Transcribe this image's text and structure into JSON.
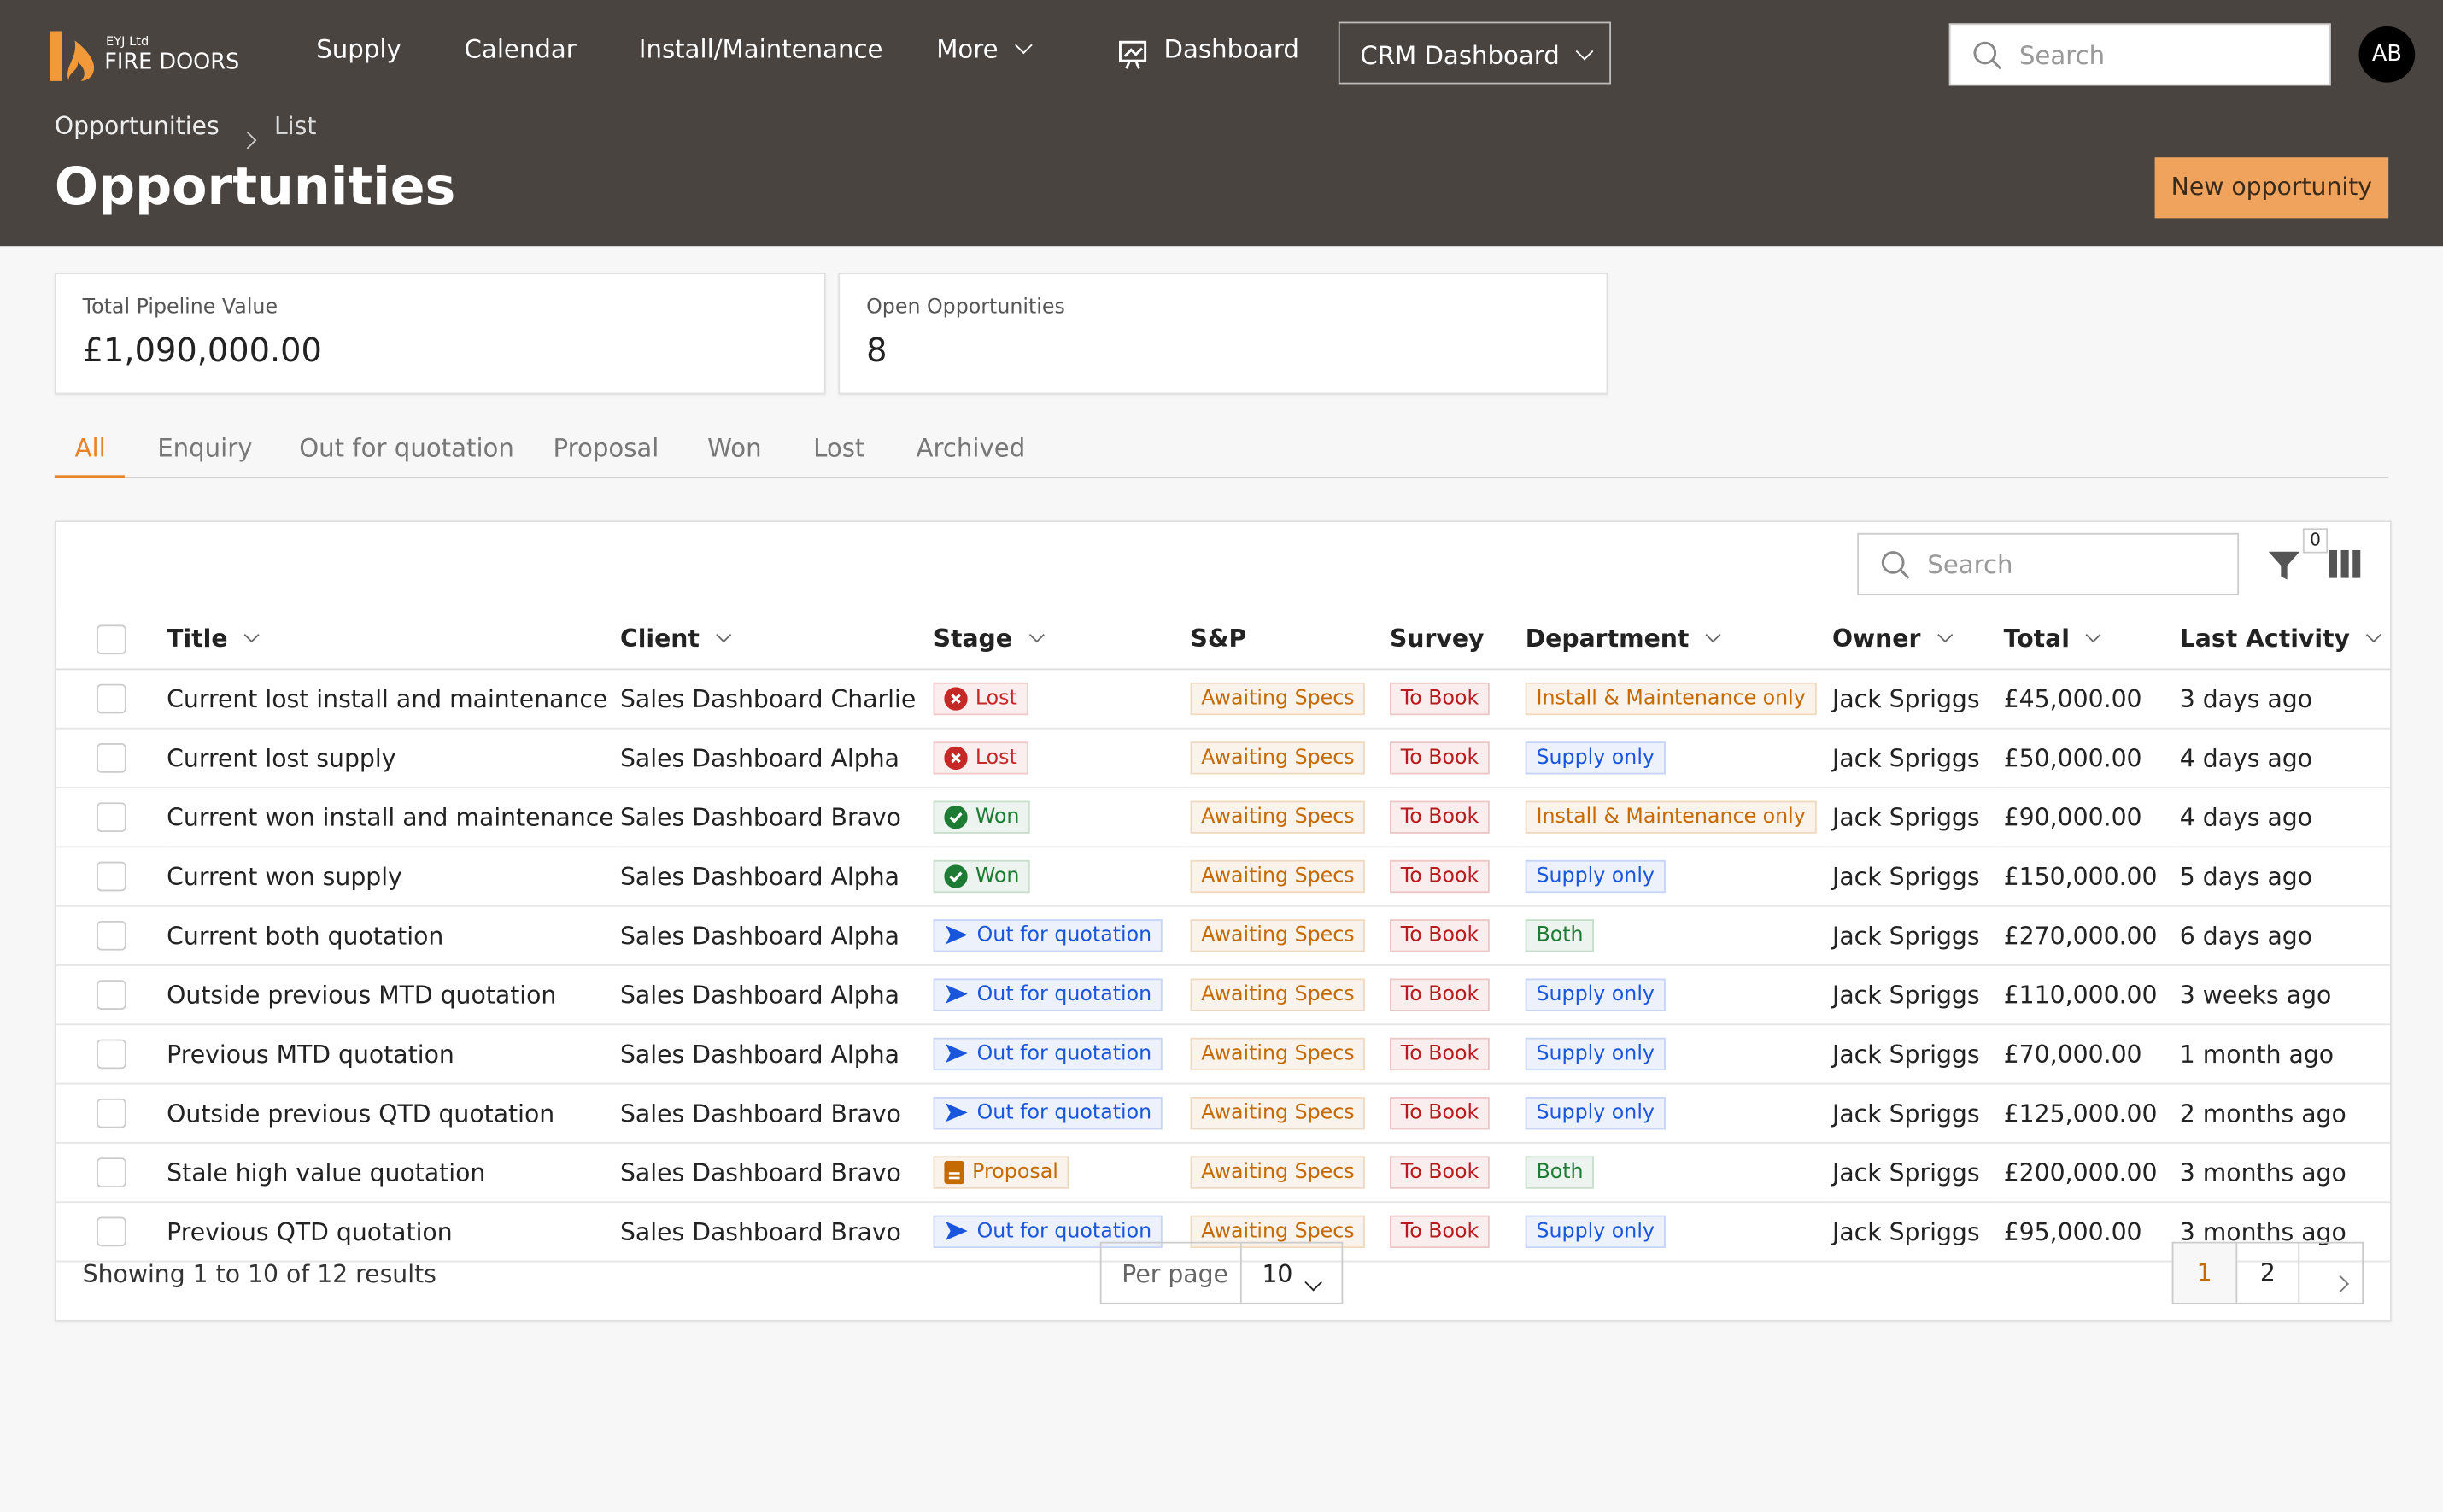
{
  "nav": {
    "logo_small": "EYJ Ltd",
    "logo": "FIRE DOORS",
    "items": [
      "Supply",
      "Calendar",
      "Install/Maintenance",
      "More",
      "Dashboard"
    ],
    "dropdown": "CRM Dashboard",
    "search_placeholder": "Search",
    "avatar": "AB"
  },
  "breadcrumb": [
    "Opportunities",
    "List"
  ],
  "header": {
    "title": "Opportunities",
    "button": "New opportunity"
  },
  "stats": [
    {
      "label": "Total Pipeline Value",
      "value": "£1,090,000.00"
    },
    {
      "label": "Open Opportunities",
      "value": "8"
    }
  ],
  "tabs": [
    "All",
    "Enquiry",
    "Out for quotation",
    "Proposal",
    "Won",
    "Lost",
    "Archived"
  ],
  "table": {
    "search_placeholder": "Search",
    "filter_count": 0,
    "columns": [
      "Title",
      "Client",
      "Stage",
      "S&P",
      "Survey",
      "Department",
      "Owner",
      "Total",
      "Last Activity"
    ],
    "rows": [
      [
        "Current lost install and maintenance",
        "Sales Dashboard Charlie",
        {
          "text": "Lost",
          "color": "#c62828",
          "icon": "x"
        },
        "Awaiting Specs",
        "To Book",
        {
          "text": "Install & Maintenance only",
          "color": "#c46a00"
        },
        "Jack Spriggs",
        "£45,000.00",
        "3 days ago"
      ],
      [
        "Current lost supply",
        "Sales Dashboard Alpha",
        {
          "text": "Lost",
          "color": "#c62828",
          "icon": "x"
        },
        "Awaiting Specs",
        "To Book",
        {
          "text": "Supply only",
          "color": "#1a56db"
        },
        "Jack Spriggs",
        "£50,000.00",
        "4 days ago"
      ],
      [
        "Current won install and maintenance",
        "Sales Dashboard Bravo",
        {
          "text": "Won",
          "color": "#1e7b34",
          "icon": "check"
        },
        "Awaiting Specs",
        "To Book",
        {
          "text": "Install & Maintenance only",
          "color": "#c46a00"
        },
        "Jack Spriggs",
        "£90,000.00",
        "4 days ago"
      ],
      [
        "Current won supply",
        "Sales Dashboard Alpha",
        {
          "text": "Won",
          "color": "#1e7b34",
          "icon": "check"
        },
        "Awaiting Specs",
        "To Book",
        {
          "text": "Supply only",
          "color": "#1a56db"
        },
        "Jack Spriggs",
        "£150,000.00",
        "5 days ago"
      ],
      [
        "Current both quotation",
        "Sales Dashboard Alpha",
        {
          "text": "Out for quotation",
          "color": "#1a56db",
          "icon": "arrow"
        },
        "Awaiting Specs",
        "To Book",
        {
          "text": "Both",
          "color": "#1e7b34"
        },
        "Jack Spriggs",
        "£270,000.00",
        "6 days ago"
      ],
      [
        "Outside previous MTD quotation",
        "Sales Dashboard Alpha",
        {
          "text": "Out for quotation",
          "color": "#1a56db",
          "icon": "arrow"
        },
        "Awaiting Specs",
        "To Book",
        {
          "text": "Supply only",
          "color": "#1a56db"
        },
        "Jack Spriggs",
        "£110,000.00",
        "3 weeks ago"
      ],
      [
        "Previous MTD quotation",
        "Sales Dashboard Alpha",
        {
          "text": "Out for quotation",
          "color": "#1a56db",
          "icon": "arrow"
        },
        "Awaiting Specs",
        "To Book",
        {
          "text": "Supply only",
          "color": "#1a56db"
        },
        "Jack Spriggs",
        "£70,000.00",
        "1 month ago"
      ],
      [
        "Outside previous QTD quotation",
        "Sales Dashboard Bravo",
        {
          "text": "Out for quotation",
          "color": "#1a56db",
          "icon": "arrow"
        },
        "Awaiting Specs",
        "To Book",
        {
          "text": "Supply only",
          "color": "#1a56db"
        },
        "Jack Spriggs",
        "£125,000.00",
        "2 months ago"
      ],
      [
        "Stale high value quotation",
        "Sales Dashboard Bravo",
        {
          "text": "Proposal",
          "color": "#c46a00",
          "icon": "doc"
        },
        "Awaiting Specs",
        "To Book",
        {
          "text": "Both",
          "color": "#1e7b34"
        },
        "Jack Spriggs",
        "£200,000.00",
        "3 months ago"
      ],
      [
        "Previous QTD quotation",
        "Sales Dashboard Bravo",
        {
          "text": "Out for quotation",
          "color": "#1a56db",
          "icon": "arrow"
        },
        "Awaiting Specs",
        "To Book",
        {
          "text": "Supply only",
          "color": "#1a56db"
        },
        "Jack Spriggs",
        "£95,000.00",
        "3 months ago"
      ]
    ]
  },
  "footer": {
    "summary": "Showing 1 to 10 of 12 results",
    "per_page_label": "Per page",
    "per_page": "10",
    "pages": [
      "1",
      "2"
    ]
  }
}
